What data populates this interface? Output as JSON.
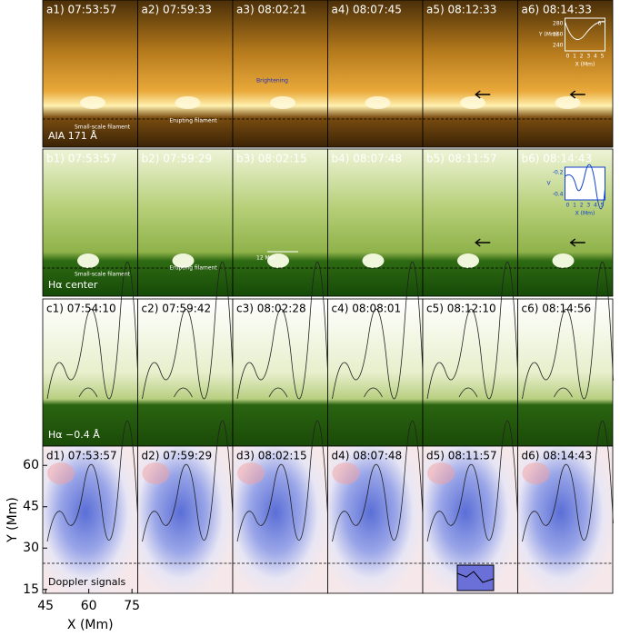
{
  "rows": [
    {
      "titles": [
        "a1) 07:53:57",
        "a2) 07:59:33",
        "a3) 08:02:21",
        "a4) 08:07:45",
        "a5) 08:12:33",
        "a6) 08:14:33"
      ],
      "channel": "AIA 171 Å",
      "annotations": [
        "Small-scale filament",
        "Erupting filament",
        "Brightening"
      ],
      "inset": {
        "ylabel": "Y (Mm)",
        "yticks": [
          240,
          260,
          280
        ],
        "xlabel": "X (Mm)",
        "xticks": [
          0,
          1,
          2,
          3,
          4,
          5
        ],
        "note": "6''"
      }
    },
    {
      "titles": [
        "b1) 07:53:57",
        "b2) 07:59:29",
        "b3) 08:02:15",
        "b4) 08:07:48",
        "b5) 08:11:57",
        "b6) 08:14:43"
      ],
      "channel": "Hα center",
      "annotations": [
        "Small-scale filament",
        "Erupting filament",
        "12 Mm"
      ],
      "inset": {
        "ylabel": "V",
        "yticks": [
          -0.4,
          -0.2
        ],
        "xlabel": "X (Mm)",
        "xticks": [
          0,
          1,
          2,
          3,
          4,
          5
        ]
      }
    },
    {
      "titles": [
        "c1) 07:54:10",
        "c2) 07:59:42",
        "c3) 08:02:28",
        "c4) 08:08:01",
        "c5) 08:12:10",
        "c6) 08:14:56"
      ],
      "channel": "Hα −0.4 Å"
    },
    {
      "titles": [
        "d1) 07:53:57",
        "d2) 07:59:29",
        "d3) 08:02:15",
        "d4) 08:07:48",
        "d5) 08:11:57",
        "d6) 08:14:43"
      ],
      "channel": "Doppler signals"
    }
  ],
  "axes": {
    "ylabel": "Y (Mm)",
    "ylim": [
      13.6,
      67
    ],
    "yticks": [
      15,
      30,
      45,
      60
    ],
    "xlabel": "X (Mm)",
    "xlim": [
      44,
      77
    ],
    "xticks": [
      45,
      60,
      75
    ]
  }
}
